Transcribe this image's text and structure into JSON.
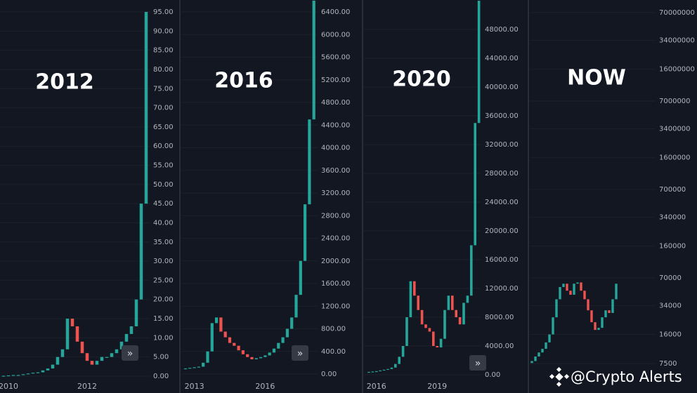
{
  "chart_data": [
    {
      "type": "candlestick",
      "title": "2012",
      "up_color": "#26a69a",
      "down_color": "#ef5350",
      "categories": [
        null,
        "2010",
        null,
        null,
        null,
        null,
        null,
        null,
        null,
        null,
        null,
        null,
        null,
        null,
        null,
        null,
        null,
        "2012",
        null,
        null,
        null,
        null,
        null,
        null,
        null,
        null,
        null,
        null,
        null,
        null
      ],
      "open": [
        0.05,
        0.1,
        0.2,
        0.3,
        0.3,
        0.5,
        0.7,
        0.9,
        1,
        1.5,
        2,
        3,
        5,
        7,
        15,
        13,
        9,
        6,
        4,
        3,
        4,
        5,
        5,
        6,
        7,
        9,
        11,
        13,
        20,
        45
      ],
      "close": [
        0.1,
        0.2,
        0.3,
        0.3,
        0.5,
        0.7,
        0.9,
        1,
        1.5,
        2,
        3,
        5,
        7,
        15,
        13,
        9,
        6,
        4,
        3,
        4,
        5,
        5,
        6,
        7,
        9,
        11,
        13,
        20,
        45,
        95
      ],
      "ylim": [
        0,
        95
      ],
      "yticks": [
        {
          "value": 0,
          "label": "0.00"
        },
        {
          "value": 5,
          "label": "5.00"
        },
        {
          "value": 10,
          "label": "10.00"
        },
        {
          "value": 15,
          "label": "15.00"
        },
        {
          "value": 20,
          "label": "20.00"
        },
        {
          "value": 25,
          "label": "25.00"
        },
        {
          "value": 30,
          "label": "30.00"
        },
        {
          "value": 35,
          "label": "35.00"
        },
        {
          "value": 40,
          "label": "40.00"
        },
        {
          "value": 45,
          "label": "45.00"
        },
        {
          "value": 50,
          "label": "50.00"
        },
        {
          "value": 55,
          "label": "55.00"
        },
        {
          "value": 60,
          "label": "60.00"
        },
        {
          "value": 65,
          "label": "65.00"
        },
        {
          "value": 70,
          "label": "70.00"
        },
        {
          "value": 75,
          "label": "75.00"
        },
        {
          "value": 80,
          "label": "80.00"
        },
        {
          "value": 85,
          "label": "85.00"
        },
        {
          "value": 90,
          "label": "90.00"
        },
        {
          "value": 95,
          "label": "95.00"
        }
      ]
    },
    {
      "type": "candlestick",
      "title": "2016",
      "up_color": "#26a69a",
      "down_color": "#ef5350",
      "categories": [
        null,
        null,
        "2013",
        null,
        null,
        null,
        null,
        null,
        null,
        null,
        null,
        null,
        null,
        null,
        null,
        null,
        null,
        null,
        "2016",
        null,
        null,
        null,
        null,
        null,
        null,
        null,
        null,
        null,
        null,
        null
      ],
      "open": [
        90,
        100,
        110,
        120,
        130,
        200,
        400,
        900,
        1000,
        750,
        650,
        550,
        500,
        420,
        350,
        300,
        260,
        280,
        300,
        330,
        380,
        450,
        550,
        650,
        800,
        1000,
        1400,
        2000,
        3000,
        4500
      ],
      "close": [
        100,
        110,
        120,
        130,
        200,
        400,
        900,
        1000,
        750,
        650,
        550,
        500,
        420,
        350,
        300,
        260,
        280,
        300,
        330,
        380,
        450,
        550,
        650,
        800,
        1000,
        1400,
        2000,
        3000,
        4500,
        6600
      ],
      "ylim": [
        0,
        6400
      ],
      "yticks": [
        {
          "value": 0,
          "label": "0.00"
        },
        {
          "value": 400,
          "label": "400.00"
        },
        {
          "value": 800,
          "label": "800.00"
        },
        {
          "value": 1200,
          "label": "1200.00"
        },
        {
          "value": 1600,
          "label": "1600.00"
        },
        {
          "value": 2000,
          "label": "2000.00"
        },
        {
          "value": 2400,
          "label": "2400.00"
        },
        {
          "value": 2800,
          "label": "2800.00"
        },
        {
          "value": 3200,
          "label": "3200.00"
        },
        {
          "value": 3600,
          "label": "3600.00"
        },
        {
          "value": 4000,
          "label": "4000.00"
        },
        {
          "value": 4400,
          "label": "4400.00"
        },
        {
          "value": 4800,
          "label": "4800.00"
        },
        {
          "value": 5200,
          "label": "5200.00"
        },
        {
          "value": 5600,
          "label": "5600.00"
        },
        {
          "value": 6000,
          "label": "6000.00"
        },
        {
          "value": 6400,
          "label": "6400.00"
        }
      ]
    },
    {
      "type": "candlestick",
      "title": "2020",
      "up_color": "#26a69a",
      "down_color": "#ef5350",
      "categories": [
        null,
        null,
        "2016",
        null,
        null,
        null,
        null,
        null,
        null,
        null,
        null,
        null,
        null,
        null,
        null,
        null,
        null,
        null,
        "2019",
        null,
        null,
        null,
        null,
        null,
        null,
        null,
        null,
        null,
        null,
        null
      ],
      "open": [
        380,
        400,
        450,
        500,
        600,
        700,
        800,
        1000,
        1500,
        2500,
        4000,
        8000,
        13000,
        11000,
        9000,
        7000,
        6500,
        6000,
        4000,
        3800,
        5000,
        9000,
        11000,
        9000,
        8000,
        7000,
        10000,
        11000,
        18000,
        35000
      ],
      "close": [
        400,
        450,
        500,
        600,
        700,
        800,
        1000,
        1500,
        2500,
        4000,
        8000,
        13000,
        11000,
        9000,
        7000,
        6500,
        6000,
        4000,
        3800,
        5000,
        9000,
        11000,
        9000,
        8000,
        7000,
        10000,
        11000,
        18000,
        35000,
        52000
      ],
      "ylim": [
        0,
        52000
      ],
      "yticks": [
        {
          "value": 0,
          "label": "0.00"
        },
        {
          "value": 4000,
          "label": "4000.00"
        },
        {
          "value": 8000,
          "label": "8000.00"
        },
        {
          "value": 12000,
          "label": "12000.00"
        },
        {
          "value": 16000,
          "label": "16000.00"
        },
        {
          "value": 20000,
          "label": "20000.00"
        },
        {
          "value": 24000,
          "label": "24000.00"
        },
        {
          "value": 28000,
          "label": "28000.00"
        },
        {
          "value": 32000,
          "label": "32000.00"
        },
        {
          "value": 36000,
          "label": "36000.00"
        },
        {
          "value": 40000,
          "label": "40000.00"
        },
        {
          "value": 44000,
          "label": "44000.00"
        },
        {
          "value": 48000,
          "label": "48000.00"
        }
      ]
    },
    {
      "type": "candlestick",
      "title": "NOW",
      "up_color": "#26a69a",
      "down_color": "#ef5350",
      "log_scale": true,
      "categories": [
        null,
        null,
        null,
        null,
        null,
        null,
        null,
        null,
        null,
        null,
        null,
        null,
        null,
        null,
        null,
        null,
        null,
        null,
        null,
        null,
        null,
        null,
        null,
        null,
        null
      ],
      "open": [
        7600,
        8000,
        9000,
        10000,
        11000,
        13000,
        16000,
        25000,
        40000,
        55000,
        60000,
        50000,
        45000,
        60000,
        62000,
        50000,
        40000,
        30000,
        22000,
        18000,
        19000,
        25000,
        30000,
        28000,
        40000
      ],
      "close": [
        8000,
        9000,
        10000,
        11000,
        13000,
        16000,
        25000,
        40000,
        55000,
        60000,
        50000,
        45000,
        60000,
        62000,
        50000,
        40000,
        30000,
        22000,
        18000,
        19000,
        25000,
        30000,
        28000,
        40000,
        60000
      ],
      "ylim": [
        7500,
        70000000
      ],
      "yticks": [
        7500,
        16000,
        34000,
        70000,
        160000,
        340000,
        700000,
        1600000,
        3400000,
        7000000,
        16000000,
        34000000,
        70000000
      ]
    }
  ],
  "watermark": "@Crypto Alerts"
}
